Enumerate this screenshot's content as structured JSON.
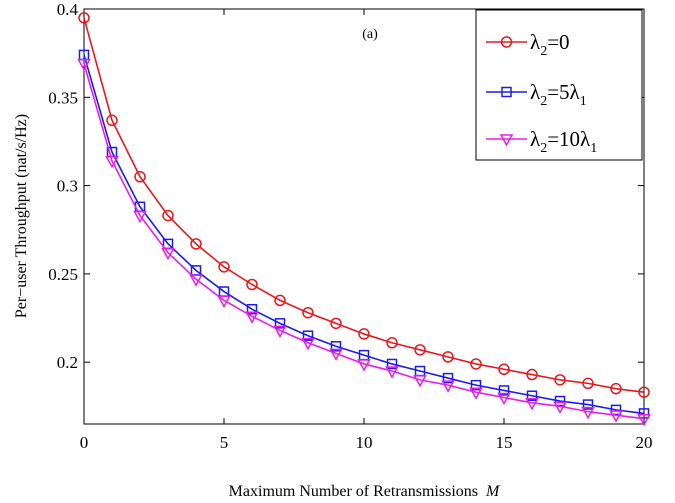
{
  "chart_data": {
    "type": "line",
    "annotation": "(a)",
    "xlabel": "Maximum Number of Retransmissions",
    "xlabel_var": "M",
    "ylabel": "Per−user Throughput (nat/s/Hz)",
    "xlim": [
      0,
      20
    ],
    "ylim": [
      0.165,
      0.4
    ],
    "xticks": [
      0,
      5,
      10,
      15,
      20
    ],
    "xtick_labels": [
      "0",
      "5",
      "10",
      "15",
      "20"
    ],
    "yticks": [
      0.2,
      0.25,
      0.3,
      0.35,
      0.4
    ],
    "ytick_labels": [
      "0.2",
      "0.25",
      "0.3",
      "0.35",
      "0.4"
    ],
    "grid": false,
    "legend_position": "top-right",
    "x": [
      0,
      1,
      2,
      3,
      4,
      5,
      6,
      7,
      8,
      9,
      10,
      11,
      12,
      13,
      14,
      15,
      16,
      17,
      18,
      19,
      20
    ],
    "series": [
      {
        "name": "λ2=0",
        "legend": {
          "base": "λ",
          "sub": "2",
          "rest": "=0",
          "sub2": ""
        },
        "color": "#e8191e",
        "marker": "circle",
        "values": [
          0.395,
          0.337,
          0.305,
          0.283,
          0.267,
          0.254,
          0.244,
          0.235,
          0.228,
          0.222,
          0.216,
          0.211,
          0.207,
          0.203,
          0.199,
          0.196,
          0.193,
          0.19,
          0.188,
          0.185,
          0.183
        ]
      },
      {
        "name": "λ2=5λ1",
        "legend": {
          "base": "λ",
          "sub": "2",
          "rest": "=5λ",
          "sub2": "1"
        },
        "color": "#1c1cf0",
        "marker": "square",
        "values": [
          0.374,
          0.319,
          0.288,
          0.267,
          0.252,
          0.24,
          0.23,
          0.222,
          0.215,
          0.209,
          0.204,
          0.199,
          0.195,
          0.191,
          0.187,
          0.184,
          0.181,
          0.178,
          0.176,
          0.173,
          0.171
        ]
      },
      {
        "name": "λ2=10λ1",
        "legend": {
          "base": "λ",
          "sub": "2",
          "rest": "=10λ",
          "sub2": "1"
        },
        "color": "#e81ee8",
        "marker": "triangle-down",
        "values": [
          0.369,
          0.314,
          0.283,
          0.262,
          0.247,
          0.235,
          0.226,
          0.218,
          0.211,
          0.205,
          0.199,
          0.195,
          0.19,
          0.187,
          0.183,
          0.18,
          0.177,
          0.175,
          0.172,
          0.17,
          0.168
        ]
      }
    ]
  }
}
